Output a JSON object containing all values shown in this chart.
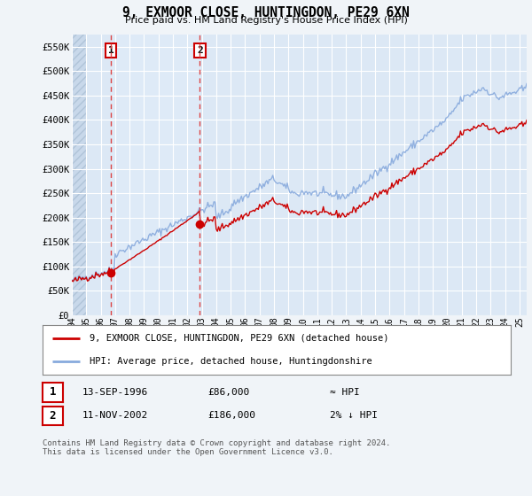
{
  "title": "9, EXMOOR CLOSE, HUNTINGDON, PE29 6XN",
  "subtitle": "Price paid vs. HM Land Registry's House Price Index (HPI)",
  "background_color": "#f0f4f8",
  "plot_bg_color": "#dce8f5",
  "grid_color": "#ffffff",
  "ylim": [
    0,
    575000
  ],
  "yticks": [
    0,
    50000,
    100000,
    150000,
    200000,
    250000,
    300000,
    350000,
    400000,
    450000,
    500000,
    550000
  ],
  "ytick_labels": [
    "£0",
    "£50K",
    "£100K",
    "£150K",
    "£200K",
    "£250K",
    "£300K",
    "£350K",
    "£400K",
    "£450K",
    "£500K",
    "£550K"
  ],
  "xlim_start": 1994.0,
  "xlim_end": 2025.5,
  "xtick_years": [
    1994,
    1995,
    1996,
    1997,
    1998,
    1999,
    2000,
    2001,
    2002,
    2003,
    2004,
    2005,
    2006,
    2007,
    2008,
    2009,
    2010,
    2011,
    2012,
    2013,
    2014,
    2015,
    2016,
    2017,
    2018,
    2019,
    2020,
    2021,
    2022,
    2023,
    2024,
    2025
  ],
  "sale1_x": 1996.71,
  "sale1_y": 86000,
  "sale2_x": 2002.87,
  "sale2_y": 186000,
  "sale1_label": "1",
  "sale2_label": "2",
  "red_line_color": "#cc0000",
  "blue_line_color": "#88aadd",
  "marker_color": "#cc0000",
  "vline_color": "#dd4444",
  "shade_color": "#dce8f5",
  "legend_label1": "9, EXMOOR CLOSE, HUNTINGDON, PE29 6XN (detached house)",
  "legend_label2": "HPI: Average price, detached house, Huntingdonshire",
  "table_row1": [
    "1",
    "13-SEP-1996",
    "£86,000",
    "≈ HPI"
  ],
  "table_row2": [
    "2",
    "11-NOV-2002",
    "£186,000",
    "2% ↓ HPI"
  ],
  "footnote": "Contains HM Land Registry data © Crown copyright and database right 2024.\nThis data is licensed under the Open Government Licence v3.0."
}
